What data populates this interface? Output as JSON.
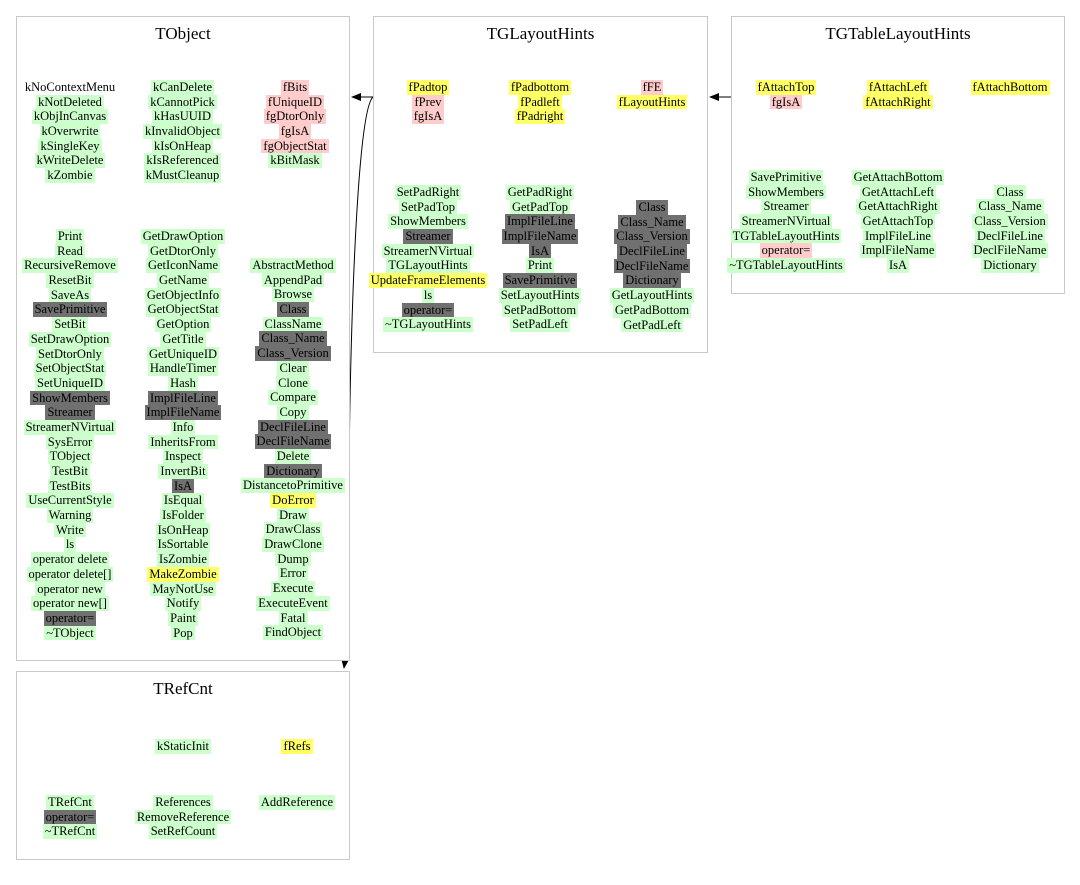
{
  "colors": {
    "public_method": "#ccffcc",
    "inherited_dark": "#707070",
    "protected": "#ffff66",
    "private": "#ffcccc",
    "border": "#c8c8c8"
  },
  "classes": {
    "tobject": {
      "title": "TObject",
      "cols": [
        [
          {
            "t": "kNoContextMenu",
            "c": ""
          },
          {
            "t": "kNotDeleted",
            "c": "g"
          },
          {
            "t": "kObjInCanvas",
            "c": "g"
          },
          {
            "t": "kOverwrite",
            "c": "g"
          },
          {
            "t": "kSingleKey",
            "c": "g"
          },
          {
            "t": "kWriteDelete",
            "c": "g"
          },
          {
            "t": "kZombie",
            "c": "g"
          }
        ],
        [
          {
            "t": "kCanDelete",
            "c": "g"
          },
          {
            "t": "kCannotPick",
            "c": "g"
          },
          {
            "t": "kHasUUID",
            "c": "g"
          },
          {
            "t": "kInvalidObject",
            "c": "g"
          },
          {
            "t": "kIsOnHeap",
            "c": "g"
          },
          {
            "t": "kIsReferenced",
            "c": "g"
          },
          {
            "t": "kMustCleanup",
            "c": "g"
          }
        ],
        [
          {
            "t": "fBits",
            "c": "p"
          },
          {
            "t": "fUniqueID",
            "c": "p"
          },
          {
            "t": "fgDtorOnly",
            "c": "p"
          },
          {
            "t": "fgIsA",
            "c": "p"
          },
          {
            "t": "fgObjectStat",
            "c": "p"
          },
          {
            "t": "kBitMask",
            "c": "g"
          }
        ],
        [
          {
            "t": "Print",
            "c": "g"
          },
          {
            "t": "Read",
            "c": "g"
          },
          {
            "t": "RecursiveRemove",
            "c": "g"
          },
          {
            "t": "ResetBit",
            "c": "g"
          },
          {
            "t": "SaveAs",
            "c": "g"
          },
          {
            "t": "SavePrimitive",
            "c": "d"
          },
          {
            "t": "SetBit",
            "c": "g"
          },
          {
            "t": "SetDrawOption",
            "c": "g"
          },
          {
            "t": "SetDtorOnly",
            "c": "g"
          },
          {
            "t": "SetObjectStat",
            "c": "g"
          },
          {
            "t": "SetUniqueID",
            "c": "g"
          },
          {
            "t": "ShowMembers",
            "c": "d"
          },
          {
            "t": "Streamer",
            "c": "d"
          },
          {
            "t": "StreamerNVirtual",
            "c": "g"
          },
          {
            "t": "SysError",
            "c": "g"
          },
          {
            "t": "TObject",
            "c": "g"
          },
          {
            "t": "TestBit",
            "c": "g"
          },
          {
            "t": "TestBits",
            "c": "g"
          },
          {
            "t": "UseCurrentStyle",
            "c": "g"
          },
          {
            "t": "Warning",
            "c": "g"
          },
          {
            "t": "Write",
            "c": "g"
          },
          {
            "t": "ls",
            "c": "g"
          },
          {
            "t": "operator delete",
            "c": "g"
          },
          {
            "t": "operator delete[]",
            "c": "g"
          },
          {
            "t": "operator new",
            "c": "g"
          },
          {
            "t": "operator new[]",
            "c": "g"
          },
          {
            "t": "operator=",
            "c": "d"
          },
          {
            "t": "~TObject",
            "c": "g"
          }
        ],
        [
          {
            "t": "GetDrawOption",
            "c": "g"
          },
          {
            "t": "GetDtorOnly",
            "c": "g"
          },
          {
            "t": "GetIconName",
            "c": "g"
          },
          {
            "t": "GetName",
            "c": "g"
          },
          {
            "t": "GetObjectInfo",
            "c": "g"
          },
          {
            "t": "GetObjectStat",
            "c": "g"
          },
          {
            "t": "GetOption",
            "c": "g"
          },
          {
            "t": "GetTitle",
            "c": "g"
          },
          {
            "t": "GetUniqueID",
            "c": "g"
          },
          {
            "t": "HandleTimer",
            "c": "g"
          },
          {
            "t": "Hash",
            "c": "g"
          },
          {
            "t": "ImplFileLine",
            "c": "d"
          },
          {
            "t": "ImplFileName",
            "c": "d"
          },
          {
            "t": "Info",
            "c": "g"
          },
          {
            "t": "InheritsFrom",
            "c": "g"
          },
          {
            "t": "Inspect",
            "c": "g"
          },
          {
            "t": "InvertBit",
            "c": "g"
          },
          {
            "t": "IsA",
            "c": "d"
          },
          {
            "t": "IsEqual",
            "c": "g"
          },
          {
            "t": "IsFolder",
            "c": "g"
          },
          {
            "t": "IsOnHeap",
            "c": "g"
          },
          {
            "t": "IsSortable",
            "c": "g"
          },
          {
            "t": "IsZombie",
            "c": "g"
          },
          {
            "t": "MakeZombie",
            "c": "y"
          },
          {
            "t": "MayNotUse",
            "c": "g"
          },
          {
            "t": "Notify",
            "c": "g"
          },
          {
            "t": "Paint",
            "c": "g"
          },
          {
            "t": "Pop",
            "c": "g"
          }
        ],
        [
          {
            "t": "AbstractMethod",
            "c": "g"
          },
          {
            "t": "AppendPad",
            "c": "g"
          },
          {
            "t": "Browse",
            "c": "g"
          },
          {
            "t": "Class",
            "c": "d"
          },
          {
            "t": "ClassName",
            "c": "g"
          },
          {
            "t": "Class_Name",
            "c": "d"
          },
          {
            "t": "Class_Version",
            "c": "d"
          },
          {
            "t": "Clear",
            "c": "g"
          },
          {
            "t": "Clone",
            "c": "g"
          },
          {
            "t": "Compare",
            "c": "g"
          },
          {
            "t": "Copy",
            "c": "g"
          },
          {
            "t": "DeclFileLine",
            "c": "d"
          },
          {
            "t": "DeclFileName",
            "c": "d"
          },
          {
            "t": "Delete",
            "c": "g"
          },
          {
            "t": "Dictionary",
            "c": "d"
          },
          {
            "t": "DistancetoPrimitive",
            "c": "g"
          },
          {
            "t": "DoError",
            "c": "y"
          },
          {
            "t": "Draw",
            "c": "g"
          },
          {
            "t": "DrawClass",
            "c": "g"
          },
          {
            "t": "DrawClone",
            "c": "g"
          },
          {
            "t": "Dump",
            "c": "g"
          },
          {
            "t": "Error",
            "c": "g"
          },
          {
            "t": "Execute",
            "c": "g"
          },
          {
            "t": "ExecuteEvent",
            "c": "g"
          },
          {
            "t": "Fatal",
            "c": "g"
          },
          {
            "t": "FindObject",
            "c": "g"
          }
        ]
      ]
    },
    "tglayouthints": {
      "title": "TGLayoutHints",
      "cols": [
        [
          {
            "t": "fPadtop",
            "c": "y"
          },
          {
            "t": "fPrev",
            "c": "p"
          },
          {
            "t": "fgIsA",
            "c": "p"
          }
        ],
        [
          {
            "t": "fPadbottom",
            "c": "y"
          },
          {
            "t": "fPadleft",
            "c": "y"
          },
          {
            "t": "fPadright",
            "c": "y"
          }
        ],
        [
          {
            "t": "fFE",
            "c": "p"
          },
          {
            "t": "fLayoutHints",
            "c": "y"
          }
        ],
        [
          {
            "t": "SetPadRight",
            "c": "g"
          },
          {
            "t": "SetPadTop",
            "c": "g"
          },
          {
            "t": "ShowMembers",
            "c": "g"
          },
          {
            "t": "Streamer",
            "c": "d"
          },
          {
            "t": "StreamerNVirtual",
            "c": "g"
          },
          {
            "t": "TGLayoutHints",
            "c": "g"
          },
          {
            "t": "UpdateFrameElements",
            "c": "y"
          },
          {
            "t": "ls",
            "c": "g"
          },
          {
            "t": "operator=",
            "c": "d"
          },
          {
            "t": "~TGLayoutHints",
            "c": "g"
          }
        ],
        [
          {
            "t": "GetPadRight",
            "c": "g"
          },
          {
            "t": "GetPadTop",
            "c": "g"
          },
          {
            "t": "ImplFileLine",
            "c": "d"
          },
          {
            "t": "ImplFileName",
            "c": "d"
          },
          {
            "t": "IsA",
            "c": "d"
          },
          {
            "t": "Print",
            "c": "g"
          },
          {
            "t": "SavePrimitive",
            "c": "d"
          },
          {
            "t": "SetLayoutHints",
            "c": "g"
          },
          {
            "t": "SetPadBottom",
            "c": "g"
          },
          {
            "t": "SetPadLeft",
            "c": "g"
          }
        ],
        [
          {
            "t": "Class",
            "c": "d"
          },
          {
            "t": "Class_Name",
            "c": "d"
          },
          {
            "t": "Class_Version",
            "c": "d"
          },
          {
            "t": "DeclFileLine",
            "c": "d"
          },
          {
            "t": "DeclFileName",
            "c": "d"
          },
          {
            "t": "Dictionary",
            "c": "d"
          },
          {
            "t": "GetLayoutHints",
            "c": "g"
          },
          {
            "t": "GetPadBottom",
            "c": "g"
          },
          {
            "t": "GetPadLeft",
            "c": "g"
          }
        ]
      ]
    },
    "tgtablelayouthints": {
      "title": "TGTableLayoutHints",
      "cols": [
        [
          {
            "t": "fAttachTop",
            "c": "y"
          },
          {
            "t": "fgIsA",
            "c": "p"
          }
        ],
        [
          {
            "t": "fAttachLeft",
            "c": "y"
          },
          {
            "t": "fAttachRight",
            "c": "y"
          }
        ],
        [
          {
            "t": "fAttachBottom",
            "c": "y"
          }
        ],
        [
          {
            "t": "SavePrimitive",
            "c": "g"
          },
          {
            "t": "ShowMembers",
            "c": "g"
          },
          {
            "t": "Streamer",
            "c": "g"
          },
          {
            "t": "StreamerNVirtual",
            "c": "g"
          },
          {
            "t": "TGTableLayoutHints",
            "c": "g"
          },
          {
            "t": "operator=",
            "c": "p"
          },
          {
            "t": "~TGTableLayoutHints",
            "c": "g"
          }
        ],
        [
          {
            "t": "GetAttachBottom",
            "c": "g"
          },
          {
            "t": "GetAttachLeft",
            "c": "g"
          },
          {
            "t": "GetAttachRight",
            "c": "g"
          },
          {
            "t": "GetAttachTop",
            "c": "g"
          },
          {
            "t": "ImplFileLine",
            "c": "g"
          },
          {
            "t": "ImplFileName",
            "c": "g"
          },
          {
            "t": "IsA",
            "c": "g"
          }
        ],
        [
          {
            "t": "",
            "c": ""
          },
          {
            "t": "Class",
            "c": "g"
          },
          {
            "t": "Class_Name",
            "c": "g"
          },
          {
            "t": "Class_Version",
            "c": "g"
          },
          {
            "t": "DeclFileLine",
            "c": "g"
          },
          {
            "t": "DeclFileName",
            "c": "g"
          },
          {
            "t": "Dictionary",
            "c": "g"
          }
        ]
      ]
    },
    "trefcnt": {
      "title": "TRefCnt",
      "cols": [
        [],
        [
          {
            "t": "kStaticInit",
            "c": "g"
          }
        ],
        [
          {
            "t": "fRefs",
            "c": "y"
          }
        ],
        [
          {
            "t": "TRefCnt",
            "c": "g"
          },
          {
            "t": "operator=",
            "c": "d"
          },
          {
            "t": "~TRefCnt",
            "c": "g"
          }
        ],
        [
          {
            "t": "References",
            "c": "g"
          },
          {
            "t": "RemoveReference",
            "c": "g"
          },
          {
            "t": "SetRefCount",
            "c": "g"
          }
        ],
        [
          {
            "t": "AddReference",
            "c": "g"
          }
        ]
      ]
    }
  }
}
